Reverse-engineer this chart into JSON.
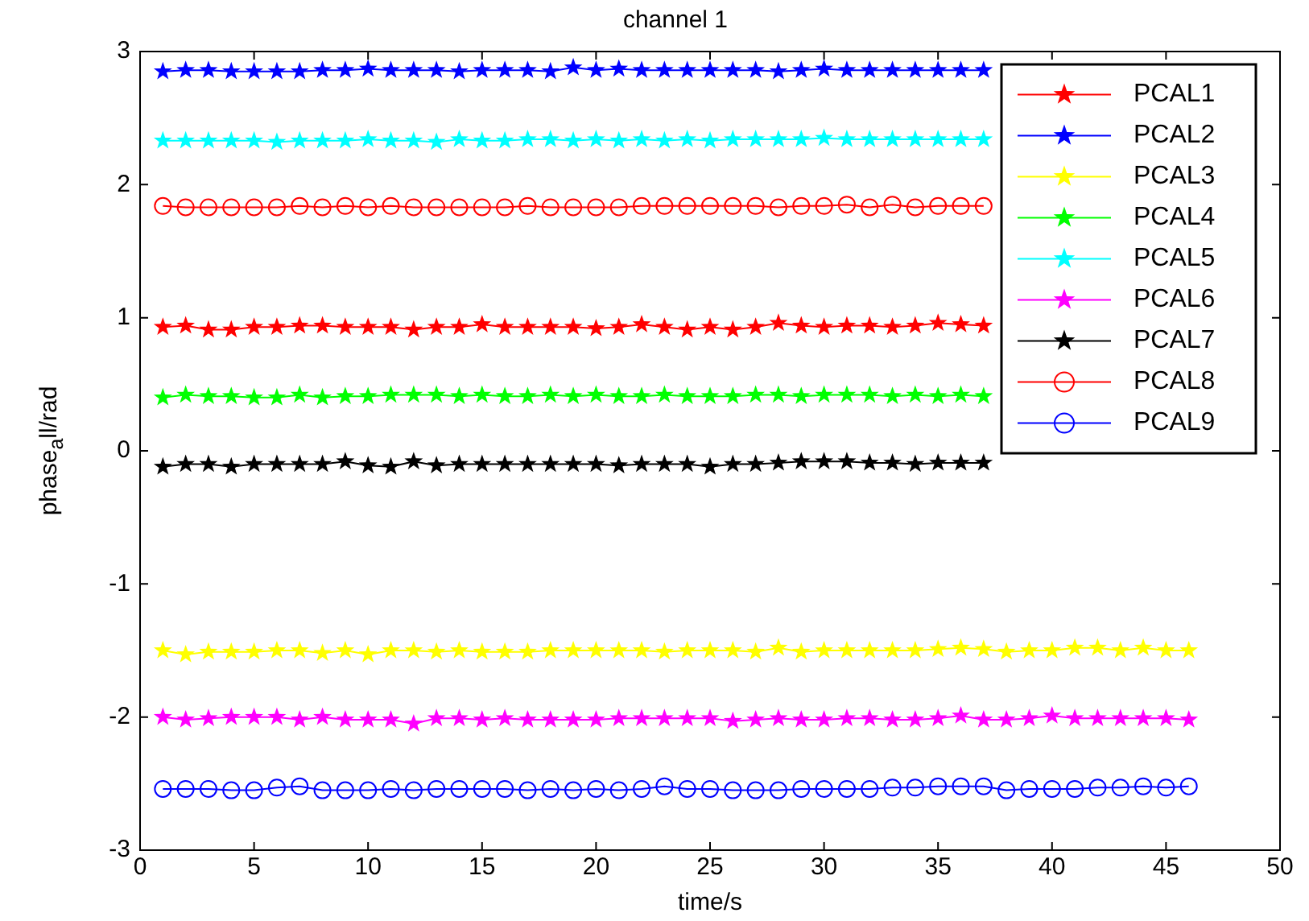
{
  "chart_data": {
    "type": "line",
    "title": "channel 1",
    "xlabel": "time/s",
    "ylabel": "phase$_{a}$ll/rad",
    "x": [
      1,
      2,
      3,
      4,
      5,
      6,
      7,
      8,
      9,
      10,
      11,
      12,
      13,
      14,
      15,
      16,
      17,
      18,
      19,
      20,
      21,
      22,
      23,
      24,
      25,
      26,
      27,
      28,
      29,
      30,
      31,
      32,
      33,
      34,
      35,
      36,
      37,
      38,
      39,
      40,
      41,
      42,
      43,
      44,
      45,
      46
    ],
    "xlim": [
      0,
      50
    ],
    "xticks": [
      0,
      5,
      10,
      15,
      20,
      25,
      30,
      35,
      40,
      45,
      50
    ],
    "ylim": [
      -3,
      3
    ],
    "yticks": [
      -3,
      -2,
      -1,
      0,
      1,
      2,
      3
    ],
    "grid": false,
    "legend": "top right",
    "line_style": "solid",
    "series": [
      {
        "name": "PCAL1",
        "color": "#ff0000",
        "marker": "star",
        "values": [
          0.93,
          0.94,
          0.91,
          0.91,
          0.93,
          0.93,
          0.94,
          0.94,
          0.93,
          0.93,
          0.93,
          0.91,
          0.93,
          0.93,
          0.95,
          0.93,
          0.93,
          0.93,
          0.93,
          0.92,
          0.93,
          0.95,
          0.93,
          0.91,
          0.93,
          0.91,
          0.93,
          0.96,
          0.94,
          0.93,
          0.94,
          0.94,
          0.93,
          0.94,
          0.96,
          0.95,
          0.94,
          null,
          null,
          null,
          null,
          null,
          null,
          null,
          null,
          null
        ]
      },
      {
        "name": "PCAL2",
        "color": "#0000ff",
        "marker": "star",
        "values": [
          2.85,
          2.86,
          2.86,
          2.85,
          2.85,
          2.85,
          2.85,
          2.86,
          2.86,
          2.87,
          2.86,
          2.86,
          2.86,
          2.85,
          2.86,
          2.86,
          2.86,
          2.85,
          2.88,
          2.86,
          2.87,
          2.86,
          2.86,
          2.86,
          2.86,
          2.86,
          2.86,
          2.85,
          2.86,
          2.87,
          2.86,
          2.86,
          2.86,
          2.86,
          2.86,
          2.86,
          2.86,
          null,
          null,
          null,
          null,
          null,
          null,
          null,
          null,
          null
        ]
      },
      {
        "name": "PCAL3",
        "color": "#ffff00",
        "marker": "star",
        "values": [
          -1.5,
          -1.53,
          -1.51,
          -1.51,
          -1.51,
          -1.5,
          -1.5,
          -1.52,
          -1.5,
          -1.53,
          -1.5,
          -1.5,
          -1.51,
          -1.5,
          -1.51,
          -1.51,
          -1.51,
          -1.5,
          -1.5,
          -1.5,
          -1.5,
          -1.5,
          -1.51,
          -1.5,
          -1.5,
          -1.5,
          -1.51,
          -1.48,
          -1.51,
          -1.5,
          -1.5,
          -1.5,
          -1.5,
          -1.5,
          -1.49,
          -1.48,
          -1.49,
          -1.51,
          -1.5,
          -1.5,
          -1.48,
          -1.48,
          -1.5,
          -1.48,
          -1.5,
          -1.5
        ]
      },
      {
        "name": "PCAL4",
        "color": "#00ff00",
        "marker": "star",
        "values": [
          0.4,
          0.42,
          0.41,
          0.41,
          0.4,
          0.4,
          0.42,
          0.4,
          0.41,
          0.41,
          0.42,
          0.42,
          0.42,
          0.41,
          0.42,
          0.41,
          0.41,
          0.42,
          0.41,
          0.42,
          0.41,
          0.41,
          0.42,
          0.41,
          0.41,
          0.41,
          0.42,
          0.42,
          0.41,
          0.42,
          0.42,
          0.42,
          0.41,
          0.42,
          0.41,
          0.42,
          0.41,
          null,
          null,
          null,
          null,
          null,
          null,
          null,
          null,
          null
        ]
      },
      {
        "name": "PCAL5",
        "color": "#00ffff",
        "marker": "star",
        "values": [
          2.33,
          2.33,
          2.33,
          2.33,
          2.33,
          2.32,
          2.33,
          2.33,
          2.33,
          2.34,
          2.33,
          2.33,
          2.32,
          2.34,
          2.33,
          2.33,
          2.34,
          2.34,
          2.33,
          2.34,
          2.33,
          2.34,
          2.33,
          2.34,
          2.33,
          2.34,
          2.34,
          2.34,
          2.34,
          2.35,
          2.34,
          2.34,
          2.34,
          2.34,
          2.34,
          2.34,
          2.34,
          null,
          null,
          null,
          null,
          null,
          null,
          null,
          null,
          null
        ]
      },
      {
        "name": "PCAL6",
        "color": "#ff00ff",
        "marker": "star",
        "values": [
          -2,
          -2.02,
          -2.01,
          -2,
          -2,
          -2,
          -2.02,
          -2,
          -2.02,
          -2.02,
          -2.02,
          -2.05,
          -2.01,
          -2.01,
          -2.02,
          -2.01,
          -2.02,
          -2.02,
          -2.02,
          -2.02,
          -2.01,
          -2.01,
          -2.01,
          -2.01,
          -2.01,
          -2.03,
          -2.02,
          -2.01,
          -2.02,
          -2.02,
          -2.01,
          -2.01,
          -2.02,
          -2.02,
          -2.01,
          -1.99,
          -2.02,
          -2.02,
          -2.01,
          -1.99,
          -2.01,
          -2.01,
          -2.01,
          -2.01,
          -2.01,
          -2.02
        ]
      },
      {
        "name": "PCAL7",
        "color": "#000000",
        "marker": "star",
        "values": [
          -0.12,
          -0.1,
          -0.1,
          -0.12,
          -0.1,
          -0.1,
          -0.1,
          -0.1,
          -0.08,
          -0.11,
          -0.12,
          -0.08,
          -0.11,
          -0.1,
          -0.1,
          -0.1,
          -0.1,
          -0.1,
          -0.1,
          -0.1,
          -0.11,
          -0.1,
          -0.1,
          -0.1,
          -0.12,
          -0.1,
          -0.1,
          -0.09,
          -0.08,
          -0.08,
          -0.08,
          -0.09,
          -0.09,
          -0.1,
          -0.09,
          -0.09,
          -0.09,
          null,
          null,
          null,
          null,
          null,
          null,
          null,
          null,
          null
        ]
      },
      {
        "name": "PCAL8",
        "color": "#ff0000",
        "marker": "circle",
        "values": [
          1.84,
          1.83,
          1.83,
          1.83,
          1.83,
          1.83,
          1.84,
          1.83,
          1.84,
          1.83,
          1.84,
          1.83,
          1.83,
          1.83,
          1.83,
          1.83,
          1.84,
          1.83,
          1.83,
          1.83,
          1.83,
          1.84,
          1.84,
          1.84,
          1.84,
          1.84,
          1.84,
          1.83,
          1.84,
          1.84,
          1.85,
          1.83,
          1.85,
          1.83,
          1.84,
          1.84,
          1.84,
          null,
          null,
          null,
          null,
          null,
          null,
          null,
          null,
          null
        ]
      },
      {
        "name": "PCAL9",
        "color": "#0000ff",
        "marker": "circle",
        "values": [
          -2.54,
          -2.54,
          -2.54,
          -2.55,
          -2.55,
          -2.53,
          -2.52,
          -2.55,
          -2.55,
          -2.55,
          -2.54,
          -2.55,
          -2.54,
          -2.54,
          -2.54,
          -2.54,
          -2.55,
          -2.54,
          -2.55,
          -2.54,
          -2.55,
          -2.54,
          -2.52,
          -2.54,
          -2.54,
          -2.55,
          -2.55,
          -2.55,
          -2.54,
          -2.54,
          -2.54,
          -2.54,
          -2.53,
          -2.53,
          -2.52,
          -2.52,
          -2.52,
          -2.55,
          -2.54,
          -2.54,
          -2.54,
          -2.53,
          -2.53,
          -2.52,
          -2.53,
          -2.52
        ]
      }
    ]
  }
}
